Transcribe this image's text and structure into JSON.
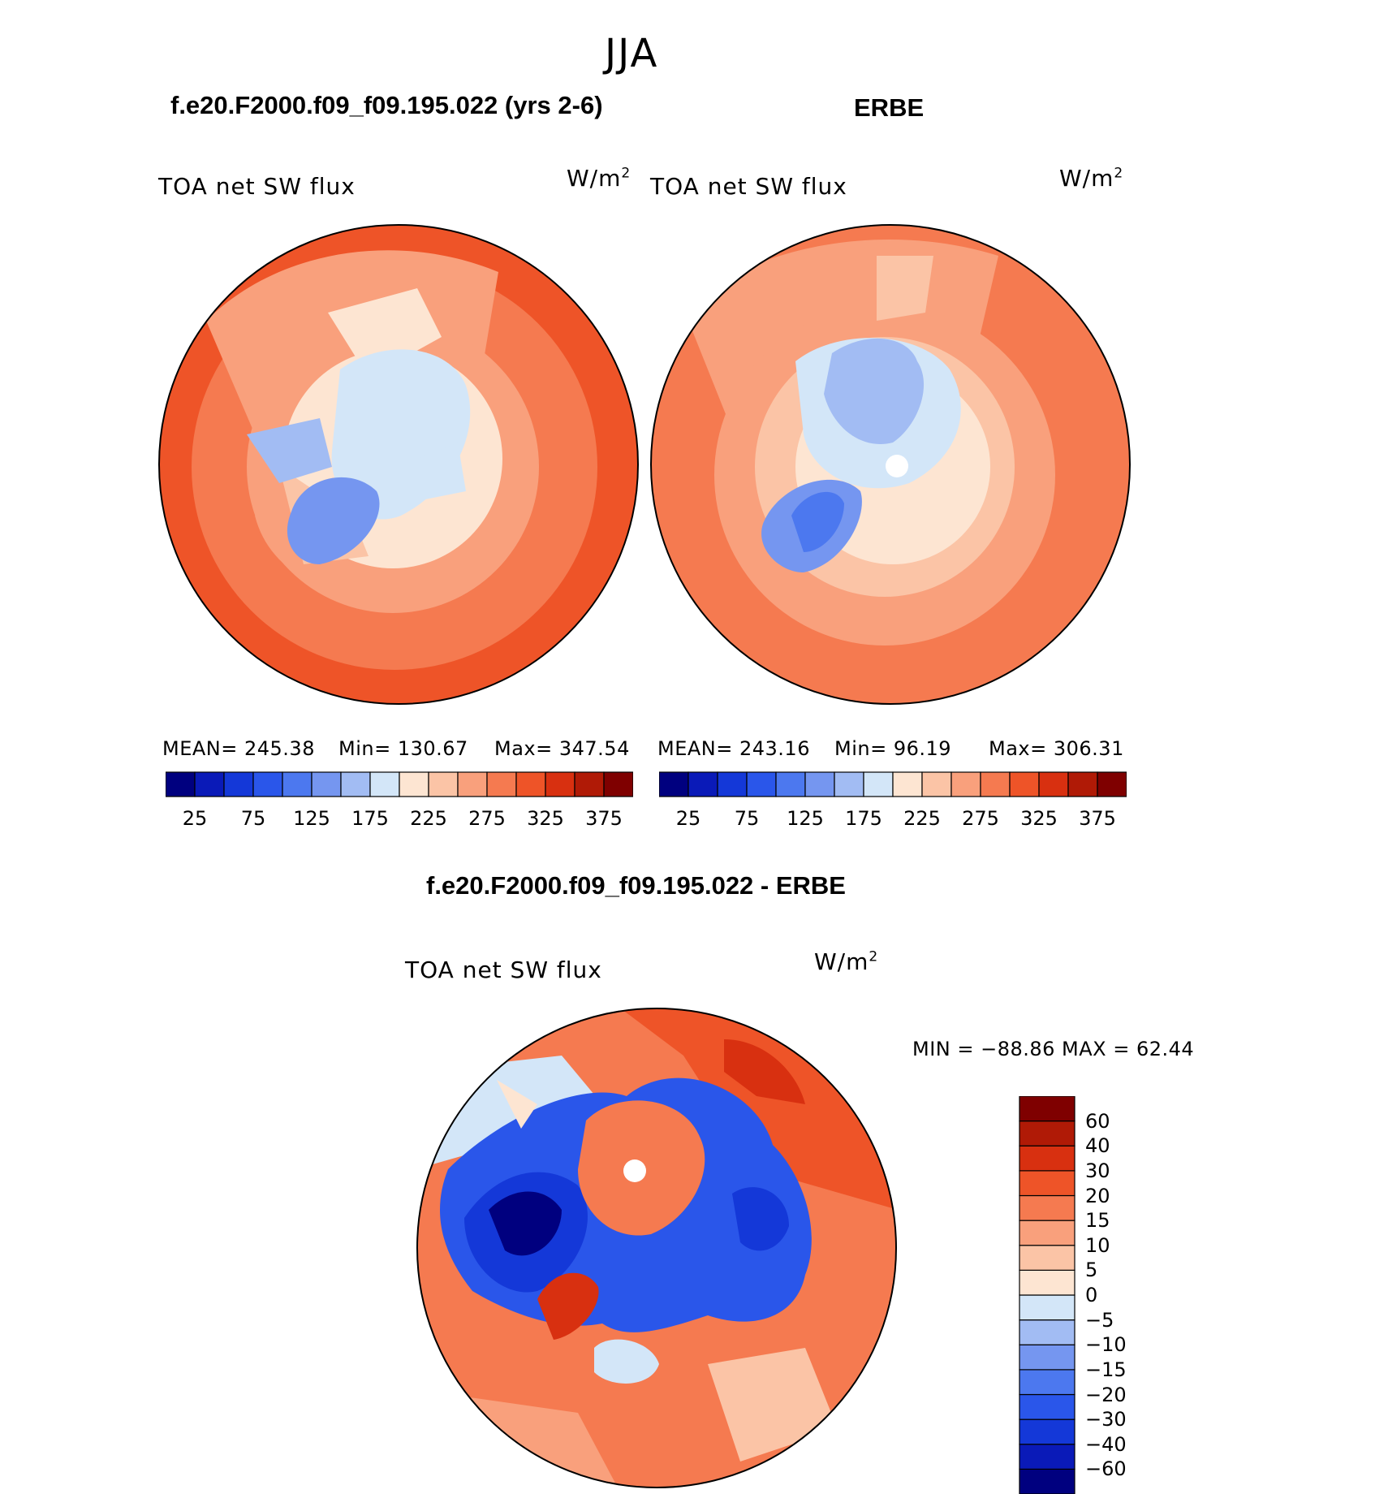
{
  "page_title": "JJA",
  "panels": [
    {
      "case": "f.e20.F2000.f09_f09.195.022 (yrs 2-6)",
      "variable": "TOA net SW flux",
      "units": "W/m",
      "units_exp": "2",
      "mean": "MEAN= 245.38",
      "min": "Min= 130.67",
      "max": "Max= 347.54"
    },
    {
      "case": "ERBE",
      "variable": "TOA net SW flux",
      "units": "W/m",
      "units_exp": "2",
      "mean": "MEAN= 243.16",
      "min": "Min=  96.19",
      "max": "Max= 306.31"
    },
    {
      "case": "f.e20.F2000.f09_f09.195.022 - ERBE",
      "variable": "TOA net SW flux",
      "units": "W/m",
      "units_exp": "2",
      "minmax": "MIN = −88.86 MAX =   62.44"
    }
  ],
  "colorbar_abs": {
    "colors": [
      "#00007f",
      "#0a1ab8",
      "#1438d8",
      "#2a56ea",
      "#4c78ef",
      "#7596f0",
      "#a2bcf3",
      "#d3e6f8",
      "#fde5d2",
      "#fbc4a6",
      "#f9a07c",
      "#f57a50",
      "#ee5428",
      "#d83010",
      "#b01a06",
      "#7f0000"
    ],
    "ticks": [
      "25",
      "75",
      "125",
      "175",
      "225",
      "275",
      "325",
      "375"
    ]
  },
  "colorbar_diff": {
    "colors": [
      "#00007f",
      "#0a1ab8",
      "#1438d8",
      "#2a56ea",
      "#4c78ef",
      "#7596f0",
      "#a2bcf3",
      "#d3e6f8",
      "#fde5d2",
      "#fbc4a6",
      "#f9a07c",
      "#f57a50",
      "#ee5428",
      "#d83010",
      "#b01a06",
      "#7f0000"
    ],
    "ticks": [
      "−60",
      "−40",
      "−30",
      "−20",
      "−15",
      "−10",
      "−5",
      "0",
      "5",
      "10",
      "15",
      "20",
      "30",
      "40",
      "60"
    ]
  }
}
